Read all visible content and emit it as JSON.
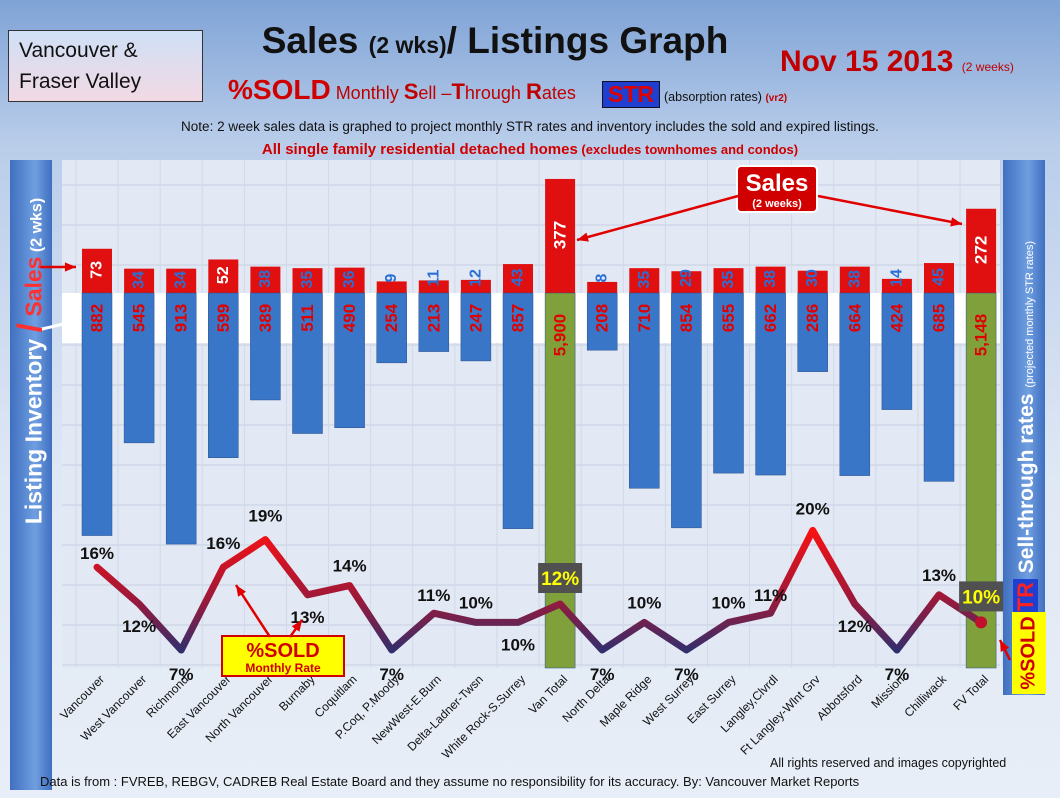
{
  "header": {
    "region_line1": "Vancouver &",
    "region_line2": "Fraser Valley",
    "title_main": "Sales ",
    "title_small": "(2 wks)",
    "title_rest": "/ Listings Graph",
    "date": "Nov 15 2013",
    "date_note": "(2 weeks)",
    "subtitle_sold": "%SOLD",
    "subtitle_mr_1": " Monthly ",
    "subtitle_mr_s": "S",
    "subtitle_mr_2": "ell –",
    "subtitle_mr_t": "T",
    "subtitle_mr_3": "hrough ",
    "subtitle_mr_r": "R",
    "subtitle_mr_4": "ates",
    "str_badge": "STR",
    "absorption": "(absorption rates)",
    "version": "(vr2)",
    "note": "Note: 2 week sales data is graphed to project monthly STR rates and inventory includes the sold and expired listings.",
    "subnote": "All single family residential detached homes",
    "subnote_small": " (excludes townhomes and condos)"
  },
  "left_axis": {
    "listing": "Listing Inventory ",
    "slash": "/",
    "sales": " Sales",
    "suffix": " (2 wks)"
  },
  "right_axis": {
    "str": "STR",
    "text": " Sell-through rates ",
    "note": "(projected monthly STR rates)"
  },
  "side_sold": "%SOLD",
  "annotations": {
    "sales_line1": "Sales",
    "sales_line2": "(2 weeks)",
    "sold_line1": "%SOLD",
    "sold_line2": "Monthly Rate"
  },
  "footer": {
    "copyright": "All rights reserved and  images copyrighted",
    "source": "Data is  from : FVREB, REBGV, CADREB Real Estate Board and they assume no responsibility  for its accuracy. By: Vancouver Market Reports"
  },
  "colors": {
    "sales": "#e01010",
    "listings": "#3a76c8",
    "totals": "#7fa03a",
    "str_high": "#ff1010",
    "str_low": "#2a3070"
  },
  "chart_data": {
    "type": "bar",
    "title": "Sales (2 wks)/ Listings Graph",
    "categories": [
      "Vancouver",
      "West Vancouver",
      "Richmond",
      "East Vancouver",
      "North Vancouver",
      "Burnaby",
      "Coquitlam",
      "P.Coq, P.Moody",
      "NewWest-E.Burn",
      "Delta-Ladner-Twsn",
      "White Rock-S.Surrey",
      "Van Total",
      "North Delta",
      "Maple Ridge",
      "West Surrey",
      "East Surrey",
      "Langley,Clvrdl",
      "Ft Langley-Wlnt Grv",
      "Abbotsford",
      "Mission",
      "Chilliwack",
      "FV Total"
    ],
    "series": [
      {
        "name": "Sales (2 weeks)",
        "values": [
          73,
          34,
          34,
          52,
          38,
          35,
          36,
          9,
          11,
          12,
          43,
          377,
          8,
          35,
          29,
          35,
          38,
          30,
          38,
          14,
          45,
          272
        ]
      },
      {
        "name": "Listing Inventory",
        "values": [
          882,
          545,
          913,
          599,
          389,
          511,
          490,
          254,
          213,
          247,
          857,
          5900,
          208,
          710,
          854,
          655,
          662,
          286,
          664,
          424,
          685,
          5148
        ]
      },
      {
        "name": "%SOLD Monthly Rate",
        "values": [
          16,
          12,
          7,
          16,
          19,
          13,
          14,
          7,
          11,
          10,
          10,
          12,
          7,
          10,
          7,
          10,
          11,
          20,
          12,
          7,
          13,
          10
        ]
      }
    ],
    "value_labels": {
      "sales": [
        "73",
        "34",
        "34",
        "52",
        "38",
        "35",
        "36",
        "9",
        "11",
        "12",
        "43",
        "377",
        "8",
        "35",
        "29",
        "35",
        "38",
        "30",
        "38",
        "14",
        "45",
        "272"
      ],
      "listings": [
        "882",
        "545",
        "913",
        "599",
        "389",
        "511",
        "490",
        "254",
        "213",
        "247",
        "857",
        "5,900",
        "208",
        "710",
        "854",
        "655",
        "662",
        "286",
        "664",
        "424",
        "685",
        "5,148"
      ],
      "str": [
        "16%",
        "12%",
        "7%",
        "16%",
        "19%",
        "13%",
        "14%",
        "7%",
        "11%",
        "10%",
        "10%",
        "12%",
        "7%",
        "10%",
        "7%",
        "10%",
        "11%",
        "20%",
        "12%",
        "7%",
        "13%",
        "10%"
      ]
    },
    "totals_index": [
      11,
      21
    ],
    "grid": true
  }
}
